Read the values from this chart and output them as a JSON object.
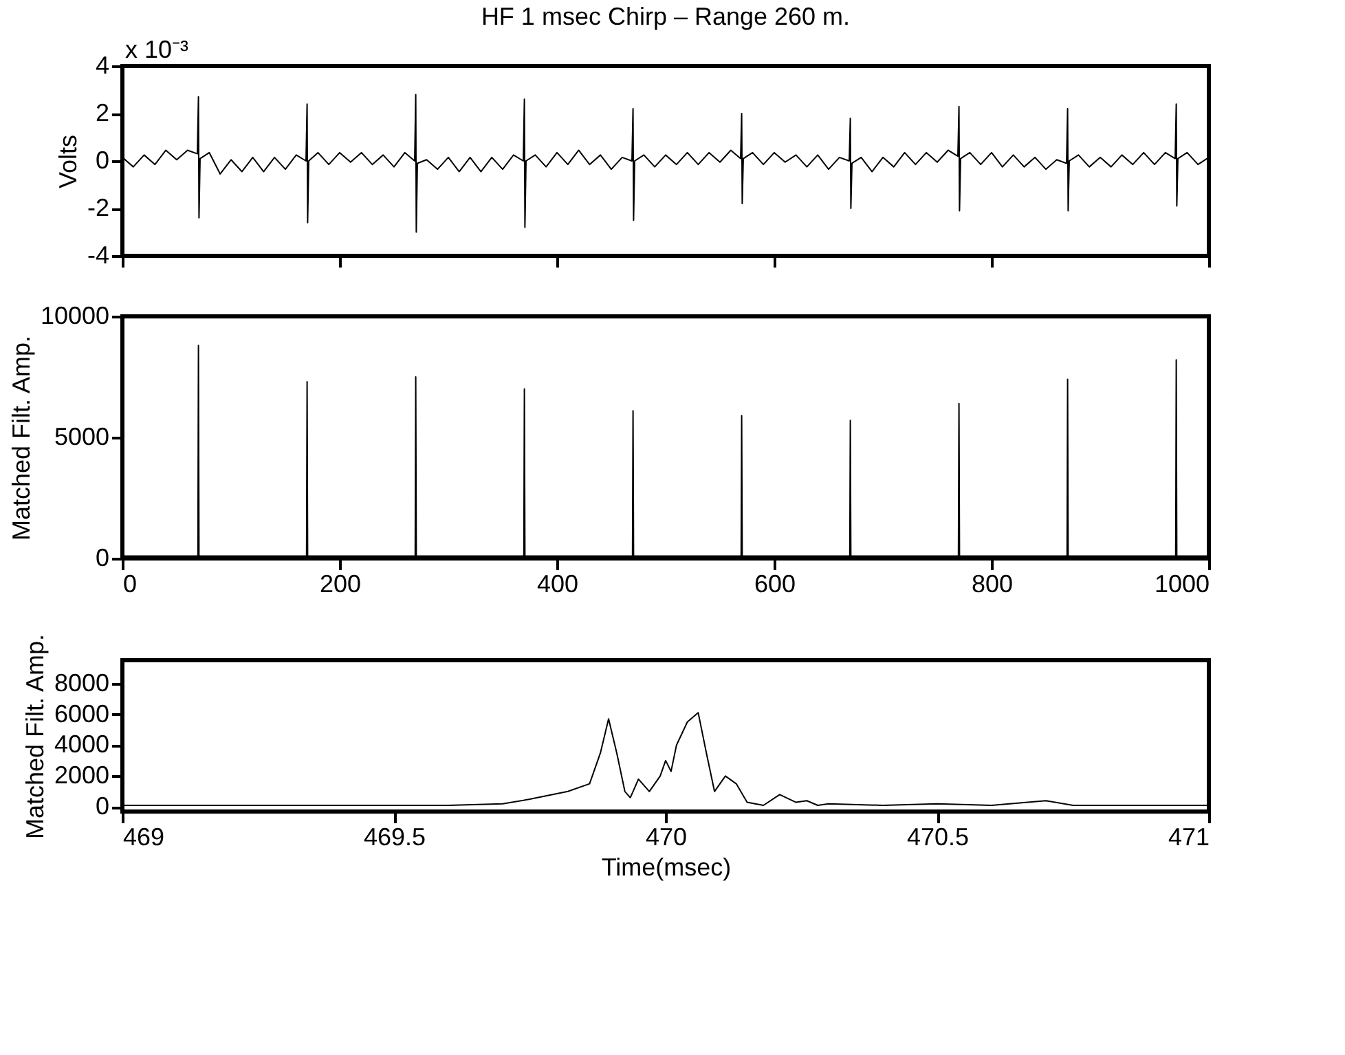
{
  "chart_data": [
    {
      "type": "line",
      "title": "HF 1 msec Chirp – Range 260 m.",
      "ylabel": "Volts",
      "annotations": [
        "x 10⁻³"
      ],
      "tick_labels": "y",
      "grid": false,
      "xlim": [
        0,
        1000
      ],
      "xticks": [
        {
          "value": 0,
          "label": null
        },
        {
          "value": 200,
          "label": null
        },
        {
          "value": 400,
          "label": null
        },
        {
          "value": 600,
          "label": null
        },
        {
          "value": 800,
          "label": null
        },
        {
          "value": 1000,
          "label": null
        }
      ],
      "ylim": [
        -4,
        4
      ],
      "yticks": [
        -4,
        -2,
        0,
        2,
        4
      ],
      "x": [
        0,
        10,
        20,
        30,
        40,
        50,
        60,
        69,
        70,
        70.5,
        71.5,
        80,
        90,
        100,
        110,
        120,
        130,
        140,
        150,
        160,
        169,
        170,
        170.5,
        171.5,
        180,
        190,
        200,
        210,
        220,
        230,
        240,
        250,
        260,
        269,
        270,
        270.5,
        271.5,
        280,
        290,
        300,
        310,
        320,
        330,
        340,
        350,
        360,
        369,
        370,
        370.5,
        371.5,
        380,
        390,
        400,
        410,
        420,
        430,
        440,
        450,
        460,
        469,
        470,
        470.5,
        471.5,
        480,
        490,
        500,
        510,
        520,
        530,
        540,
        550,
        560,
        569,
        570,
        570.5,
        571.5,
        580,
        590,
        600,
        610,
        620,
        630,
        640,
        650,
        660,
        669,
        670,
        670.5,
        671.5,
        680,
        690,
        700,
        710,
        720,
        730,
        740,
        750,
        760,
        769,
        770,
        770.5,
        771.5,
        780,
        790,
        800,
        810,
        820,
        830,
        840,
        850,
        860,
        869,
        870,
        870.5,
        871.5,
        880,
        890,
        900,
        910,
        920,
        930,
        940,
        950,
        960,
        969,
        970,
        970.5,
        971.5,
        980,
        990,
        1000
      ],
      "series": [
        {
          "color": "#000000",
          "values": [
            0.15,
            -0.25,
            0.25,
            -0.15,
            0.45,
            0.05,
            0.45,
            0.3,
            2.7,
            -2.4,
            0.1,
            0.35,
            -0.55,
            0.05,
            -0.45,
            0.15,
            -0.45,
            0.15,
            -0.35,
            0.25,
            0,
            2.4,
            -2.6,
            0,
            0.35,
            -0.15,
            0.35,
            -0.05,
            0.35,
            -0.15,
            0.25,
            -0.25,
            0.35,
            0,
            2.8,
            -3.0,
            -0.1,
            0.05,
            -0.35,
            0.15,
            -0.45,
            0.15,
            -0.45,
            0.15,
            -0.35,
            0.25,
            0,
            2.6,
            -2.8,
            0,
            0.25,
            -0.25,
            0.35,
            -0.15,
            0.45,
            -0.15,
            0.25,
            -0.35,
            0.15,
            0,
            2.2,
            -2.5,
            0,
            0.25,
            -0.25,
            0.25,
            -0.15,
            0.35,
            -0.15,
            0.35,
            -0.05,
            0.45,
            0.1,
            2.0,
            -1.8,
            0.1,
            0.35,
            -0.15,
            0.35,
            -0.05,
            0.25,
            -0.25,
            0.25,
            -0.35,
            0.15,
            0,
            1.8,
            -2.0,
            -0.1,
            0.15,
            -0.45,
            0.15,
            -0.25,
            0.35,
            -0.15,
            0.35,
            -0.05,
            0.45,
            0.2,
            2.3,
            -2.1,
            0.1,
            0.35,
            -0.15,
            0.35,
            -0.25,
            0.25,
            -0.25,
            0.15,
            -0.35,
            0.05,
            -0.1,
            2.2,
            -2.1,
            0,
            0.25,
            -0.25,
            0.15,
            -0.25,
            0.25,
            -0.15,
            0.35,
            -0.15,
            0.35,
            0.1,
            2.4,
            -1.9,
            0.1,
            0.35,
            -0.15,
            0.15
          ]
        }
      ]
    },
    {
      "type": "line",
      "ylabel": "Matched Filt. Amp.",
      "grid": false,
      "xlim": [
        0,
        1000
      ],
      "xticks": [
        0,
        200,
        400,
        600,
        800,
        1000
      ],
      "ylim": [
        0,
        10000
      ],
      "yticks": [
        0,
        5000,
        10000
      ],
      "x": [
        0,
        69.5,
        70,
        70.5,
        130,
        169.5,
        170,
        170.5,
        230,
        269.5,
        270,
        270.5,
        330,
        369.5,
        370,
        370.5,
        430,
        469.5,
        470,
        470.5,
        530,
        569.5,
        570,
        570.5,
        630,
        669.5,
        670,
        670.5,
        730,
        769.5,
        770,
        770.5,
        830,
        869.5,
        870,
        870.5,
        930,
        969.5,
        970,
        970.5,
        1000
      ],
      "series": [
        {
          "color": "#000000",
          "values": [
            100,
            100,
            8800,
            100,
            100,
            100,
            7300,
            100,
            100,
            100,
            7500,
            100,
            100,
            100,
            7000,
            100,
            100,
            100,
            6100,
            100,
            100,
            100,
            5900,
            100,
            100,
            100,
            5700,
            100,
            100,
            100,
            6400,
            100,
            100,
            100,
            7400,
            100,
            100,
            100,
            8200,
            100,
            100
          ]
        }
      ]
    },
    {
      "type": "line",
      "ylabel": "Matched Filt. Amp.",
      "xlabel": "Time(msec)",
      "grid": false,
      "xlim": [
        469,
        471
      ],
      "xticks": [
        469,
        469.5,
        470,
        470.5,
        471
      ],
      "ylim": [
        -300,
        9500
      ],
      "yticks": [
        0,
        2000,
        4000,
        6000,
        8000
      ],
      "x": [
        469,
        469.2,
        469.4,
        469.6,
        469.7,
        469.75,
        469.82,
        469.86,
        469.88,
        469.895,
        469.91,
        469.925,
        469.935,
        469.95,
        469.97,
        469.99,
        470.0,
        470.01,
        470.02,
        470.04,
        470.06,
        470.075,
        470.09,
        470.11,
        470.13,
        470.15,
        470.18,
        470.21,
        470.24,
        470.26,
        470.28,
        470.3,
        470.4,
        470.5,
        470.6,
        470.7,
        470.75,
        470.85,
        471
      ],
      "series": [
        {
          "color": "#000000",
          "values": [
            100,
            100,
            100,
            100,
            200,
            500,
            1000,
            1500,
            3500,
            5700,
            3500,
            1000,
            600,
            1800,
            1000,
            2000,
            3000,
            2300,
            4000,
            5500,
            6100,
            3500,
            1000,
            2000,
            1500,
            300,
            100,
            800,
            300,
            400,
            100,
            200,
            100,
            200,
            100,
            400,
            100,
            100,
            100
          ]
        }
      ]
    }
  ]
}
